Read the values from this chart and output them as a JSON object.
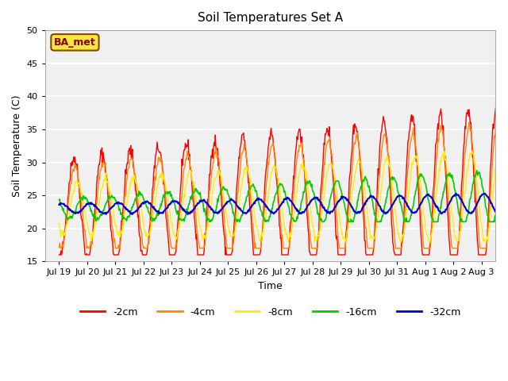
{
  "title": "Soil Temperatures Set A",
  "xlabel": "Time",
  "ylabel": "Soil Temperature (C)",
  "ylim": [
    15,
    50
  ],
  "yticks": [
    15,
    20,
    25,
    30,
    35,
    40,
    45,
    50
  ],
  "annotation_text": "BA_met",
  "colors": {
    "-2cm": "#ff0000",
    "-4cm": "#ff8800",
    "-8cm": "#ffee00",
    "-16cm": "#00cc00",
    "-32cm": "#0000cc"
  },
  "legend_labels": [
    "-2cm",
    "-4cm",
    "-8cm",
    "-16cm",
    "-32cm"
  ],
  "tick_labels": [
    "Jul 19",
    "Jul 20",
    "Jul 21",
    "Jul 22",
    "Jul 23",
    "Jul 24",
    "Jul 25",
    "Jul 26",
    "Jul 27",
    "Jul 28",
    "Jul 29",
    "Jul 30",
    "Jul 31",
    "Aug 1",
    "Aug 2",
    "Aug 3"
  ],
  "plot_bg_color": "#f0f0f0"
}
